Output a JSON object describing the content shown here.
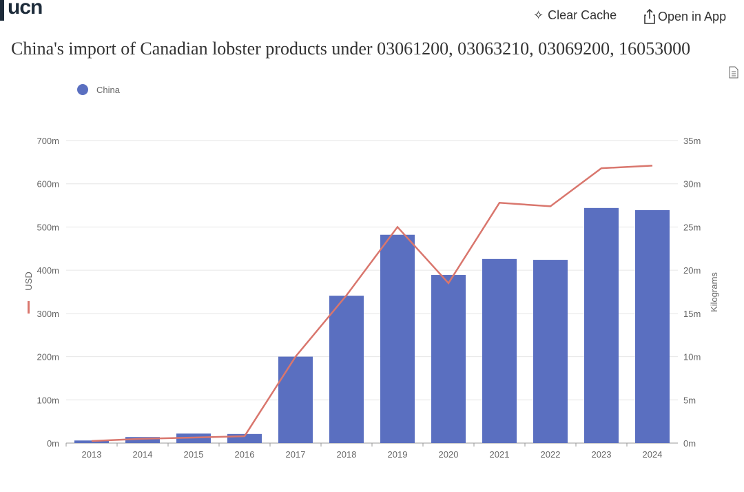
{
  "header": {
    "logo": "ucn",
    "clear_cache": "Clear Cache",
    "open_in_app": "Open in App"
  },
  "title": "China's import of Canadian lobster products under 03061200, 03063210, 03069200, 16053000",
  "chart_data": {
    "type": "bar+line",
    "categories": [
      "2013",
      "2014",
      "2015",
      "2016",
      "2017",
      "2018",
      "2019",
      "2020",
      "2021",
      "2022",
      "2023",
      "2024"
    ],
    "legend": {
      "entries": [
        "China"
      ],
      "position": "top-left"
    },
    "series": [
      {
        "name": "China",
        "type": "bar",
        "axis": "left",
        "color": "#5a6fc0",
        "values": [
          6,
          14,
          22,
          21,
          200,
          341,
          482,
          389,
          426,
          424,
          544,
          539
        ]
      },
      {
        "type": "line",
        "axis": "right",
        "color": "#d9766d",
        "values": [
          0.24,
          0.5,
          0.64,
          0.8,
          10,
          17.1,
          25,
          18.5,
          27.8,
          27.4,
          31.8,
          32.1
        ]
      }
    ],
    "y_left": {
      "label": "USD",
      "range": [
        0,
        700
      ],
      "ticks": [
        "0m",
        "100m",
        "200m",
        "300m",
        "400m",
        "500m",
        "600m",
        "700m"
      ],
      "unit": "m"
    },
    "y_right": {
      "label": "Kilograms",
      "range": [
        0,
        35
      ],
      "ticks": [
        "0m",
        "5m",
        "10m",
        "15m",
        "20m",
        "25m",
        "30m",
        "35m"
      ],
      "unit": "m"
    },
    "grid": true
  }
}
